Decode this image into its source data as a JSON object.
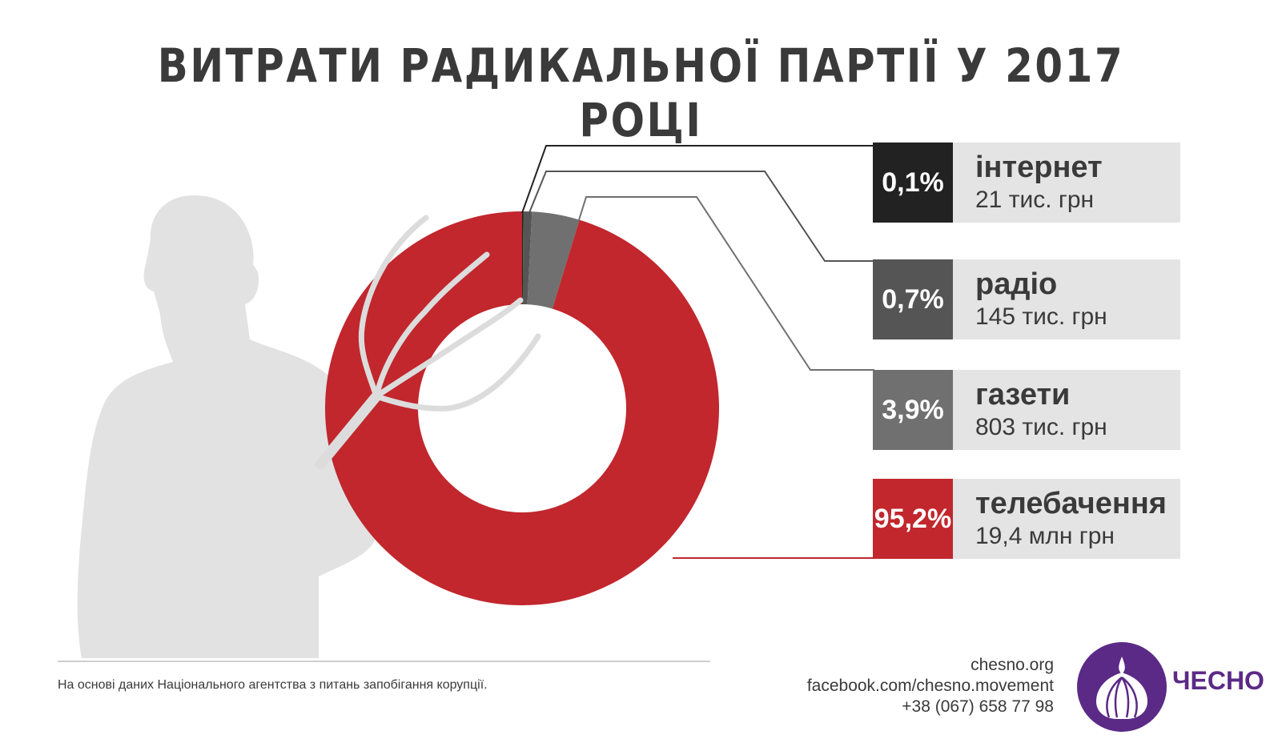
{
  "title": "ВИТРАТИ РАДИКАЛЬНОЇ ПАРТІЇ У 2017 РОЦІ",
  "colors": {
    "internet": "#222222",
    "radio": "#555555",
    "newspapers": "#707070",
    "tv": "#c1272d",
    "silhouette": "#e2e2e2",
    "legend_bg": "#e4e4e4",
    "text": "#3a3a3a",
    "brand": "#5b2a86"
  },
  "chart_data": {
    "type": "pie",
    "title": "ВИТРАТИ РАДИКАЛЬНОЇ ПАРТІЇ У 2017 РОЦІ",
    "donut": true,
    "slices": [
      {
        "label": "інтернет",
        "percent": 0.1,
        "percent_label": "0,1%",
        "amount": "21 тис. грн",
        "color": "#222222"
      },
      {
        "label": "радіо",
        "percent": 0.7,
        "percent_label": "0,7%",
        "amount": "145 тис. грн",
        "color": "#555555"
      },
      {
        "label": "газети",
        "percent": 3.9,
        "percent_label": "3,9%",
        "amount": "803 тис. грн",
        "color": "#707070"
      },
      {
        "label": "телебачення",
        "percent": 95.2,
        "percent_label": "95,2%",
        "amount": "19,4 млн грн",
        "color": "#c1272d"
      }
    ]
  },
  "footer": {
    "source": "На основі даних Національного агентства з питань запобігання корупції.",
    "website": "chesno.org",
    "facebook": "facebook.com/chesno.movement",
    "phone": "+38 (067) 658 77 98",
    "logo_text": "ЧЕСНО",
    "logo_icon": "garlic-icon"
  }
}
